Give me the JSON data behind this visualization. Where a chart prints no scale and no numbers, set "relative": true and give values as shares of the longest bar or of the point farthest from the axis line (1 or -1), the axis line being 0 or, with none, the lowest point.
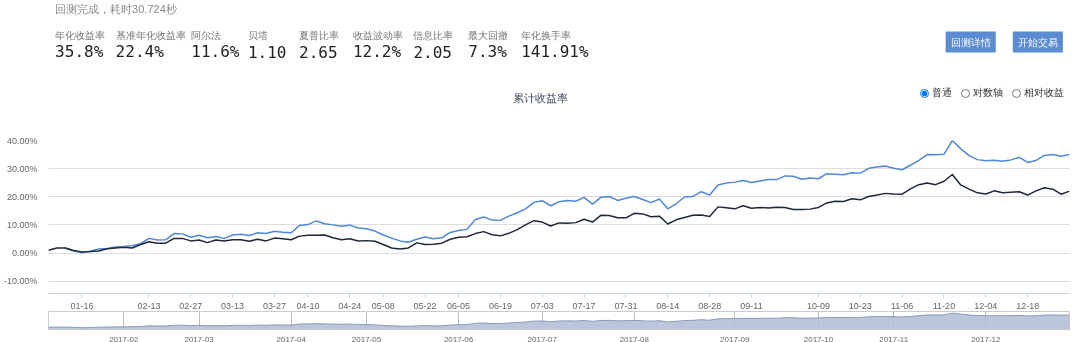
{
  "chart_data": [
    {
      "type": "other",
      "title": "回测完成，耗时30.724秒",
      "annotations": [
        "年化收益率",
        "基准年化收益率",
        "阿尔法",
        "贝塔",
        "夏普比率",
        "收益波动率",
        "信息比率",
        "最大回撤",
        "年化换手率",
        "35.8%",
        "22.4%",
        "11.6%",
        "1.10",
        "2.65",
        "12.2%",
        "2.05",
        "7.3%",
        "141.91%",
        "回测详情",
        "开始交易"
      ]
    },
    {
      "type": "line",
      "title": "累计收益率",
      "annotations": [
        "普通",
        "对数轴",
        "相对收益"
      ],
      "ylim": [
        -14.4,
        40
      ],
      "yticks": [
        {
          "value": -10,
          "label": "-10.00%"
        },
        {
          "value": 0,
          "label": "0.00%"
        },
        {
          "value": 10,
          "label": "10.00%"
        },
        {
          "value": 20,
          "label": "20.00%"
        },
        {
          "value": 30,
          "label": "30.00%"
        },
        {
          "value": 40,
          "label": "40.00%"
        }
      ],
      "grid": "y",
      "categories": [
        null,
        null,
        null,
        null,
        "01-16",
        null,
        null,
        null,
        null,
        null,
        null,
        null,
        "02-13",
        null,
        null,
        null,
        null,
        "02-27",
        null,
        null,
        null,
        null,
        "03-13",
        null,
        null,
        null,
        null,
        "03-27",
        null,
        null,
        null,
        "04-10",
        null,
        null,
        null,
        null,
        "04-24",
        null,
        null,
        null,
        "05-08",
        null,
        null,
        null,
        null,
        "05-22",
        null,
        null,
        null,
        "06-05",
        null,
        null,
        null,
        null,
        "06-19",
        null,
        null,
        null,
        null,
        "07-03",
        null,
        null,
        null,
        null,
        "07-17",
        null,
        null,
        null,
        null,
        "07-31",
        null,
        null,
        null,
        null,
        "08-14",
        null,
        null,
        null,
        null,
        "08-28",
        null,
        null,
        null,
        null,
        "09-11",
        null,
        null,
        null,
        null,
        null,
        null,
        null,
        "10-09",
        null,
        null,
        null,
        null,
        "10-23",
        null,
        null,
        null,
        null,
        "11-06",
        null,
        null,
        null,
        null,
        "11-20",
        null,
        null,
        null,
        null,
        "12-04",
        null,
        null,
        null,
        null,
        "12-18",
        null,
        null,
        null,
        null,
        null
      ],
      "series": [
        {
          "color": "#5087d8",
          "values": [
            null,
            null,
            1.8,
            0.7,
            0.1,
            0.6,
            1.4,
            1.6,
            2.1,
            2.3,
            2.6,
            3.3,
            5.2,
            4.6,
            4.7,
            6.9,
            6.8,
            5.6,
            6.3,
            5.4,
            5.9,
            5.2,
            6.4,
            6.7,
            6.2,
            7.2,
            6.9,
            7.7,
            7.4,
            7.2,
            9.8,
            10.1,
            11.4,
            10.4,
            10.0,
            9.5,
            9.9,
            8.9,
            8.6,
            7.8,
            6.4,
            5.3,
            4.3,
            3.8,
            4.9,
            5.7,
            5.1,
            5.4,
            7.3,
            8.0,
            8.4,
            11.9,
            12.8,
            11.7,
            11.6,
            13.1,
            14.3,
            15.7,
            18.0,
            18.6,
            16.8,
            18.2,
            18.7,
            18.4,
            19.8,
            17.4,
            19.8,
            20.1,
            18.7,
            19.5,
            20.1,
            19.0,
            17.9,
            19.2,
            15.7,
            17.5,
            19.9,
            20.1,
            21.8,
            20.6,
            24.2,
            24.9,
            25.2,
            25.8,
            25.1,
            25.6,
            26.1,
            26.1,
            27.4,
            27.3,
            26.2,
            26.7,
            26.4,
            28.2,
            28.0,
            27.8,
            28.5,
            28.4,
            30.1,
            30.6,
            30.9,
            30.1,
            29.6,
            31.2,
            32.9,
            35.0,
            34.9,
            35.1,
            40.0,
            37.1,
            34.6,
            33.2,
            32.8,
            33.0,
            32.6,
            33.1,
            34.0,
            32.2,
            32.9,
            34.7,
            35.0,
            34.4,
            35.0
          ]
        },
        {
          "color": "#1e2838",
          "values": [
            1.0,
            1.8,
            1.8,
            0.9,
            0.4,
            0.5,
            0.7,
            1.5,
            1.8,
            2.0,
            1.8,
            3.0,
            4.0,
            3.5,
            3.5,
            5.2,
            5.2,
            4.3,
            4.6,
            3.7,
            4.6,
            4.3,
            4.7,
            4.7,
            4.2,
            4.9,
            4.3,
            5.3,
            5.1,
            4.7,
            6.0,
            6.3,
            6.3,
            6.4,
            5.4,
            4.7,
            5.1,
            4.3,
            4.4,
            4.2,
            3.0,
            1.8,
            1.4,
            1.8,
            3.6,
            3.0,
            3.1,
            3.5,
            4.9,
            5.6,
            5.8,
            6.9,
            7.6,
            6.5,
            6.1,
            7.0,
            8.3,
            10.0,
            11.5,
            11.0,
            9.6,
            10.7,
            10.6,
            10.8,
            12.0,
            11.0,
            13.4,
            13.3,
            12.5,
            12.5,
            14.1,
            13.9,
            12.9,
            13.1,
            10.3,
            11.8,
            12.6,
            13.4,
            13.5,
            13.0,
            16.4,
            16.1,
            15.7,
            16.8,
            15.9,
            16.2,
            16.0,
            16.3,
            16.2,
            15.5,
            15.5,
            15.6,
            16.2,
            17.8,
            18.4,
            18.3,
            19.3,
            18.9,
            20.1,
            20.6,
            21.2,
            21.0,
            20.9,
            22.8,
            24.3,
            24.9,
            24.3,
            25.5,
            27.9,
            24.2,
            22.7,
            21.4,
            21.0,
            22.1,
            21.4,
            21.6,
            21.8,
            20.6,
            22.1,
            23.2,
            22.7,
            20.9,
            22.0
          ]
        }
      ]
    },
    {
      "type": "area",
      "relative": true,
      "tick_labels": "x",
      "grid": "x",
      "color": "#b4c0d6",
      "categories": [
        null,
        null,
        null,
        null,
        null,
        null,
        null,
        null,
        null,
        "2017-02",
        null,
        null,
        null,
        null,
        null,
        null,
        null,
        null,
        "2017-03",
        null,
        null,
        null,
        null,
        null,
        null,
        null,
        null,
        null,
        null,
        "2017-04",
        null,
        null,
        null,
        null,
        null,
        null,
        null,
        null,
        "2017-05",
        null,
        null,
        null,
        null,
        null,
        null,
        null,
        null,
        null,
        null,
        "2017-06",
        null,
        null,
        null,
        null,
        null,
        null,
        null,
        null,
        null,
        "2017-07",
        null,
        null,
        null,
        null,
        null,
        null,
        null,
        null,
        null,
        null,
        "2017-08",
        null,
        null,
        null,
        null,
        null,
        null,
        null,
        null,
        null,
        null,
        null,
        "2017-09",
        null,
        null,
        null,
        null,
        null,
        null,
        null,
        null,
        null,
        "2017-10",
        null,
        null,
        null,
        null,
        null,
        null,
        null,
        null,
        "2017-11",
        null,
        null,
        null,
        null,
        null,
        null,
        null,
        null,
        null,
        null,
        "2017-12",
        null,
        null,
        null,
        null,
        null,
        null,
        null,
        null,
        null,
        null
      ],
      "values": [
        0.13,
        0.15,
        0.15,
        0.13,
        0.11,
        0.12,
        0.14,
        0.15,
        0.16,
        0.16,
        0.17,
        0.18,
        0.23,
        0.21,
        0.22,
        0.26,
        0.26,
        0.24,
        0.25,
        0.23,
        0.24,
        0.23,
        0.25,
        0.26,
        0.25,
        0.27,
        0.26,
        0.28,
        0.28,
        0.27,
        0.33,
        0.34,
        0.36,
        0.34,
        0.33,
        0.32,
        0.33,
        0.31,
        0.3,
        0.28,
        0.25,
        0.23,
        0.21,
        0.2,
        0.22,
        0.24,
        0.22,
        0.23,
        0.27,
        0.29,
        0.3,
        0.38,
        0.4,
        0.37,
        0.37,
        0.4,
        0.43,
        0.46,
        0.51,
        0.52,
        0.48,
        0.52,
        0.53,
        0.52,
        0.55,
        0.5,
        0.55,
        0.56,
        0.53,
        0.54,
        0.56,
        0.53,
        0.51,
        0.54,
        0.46,
        0.5,
        0.55,
        0.56,
        0.6,
        0.57,
        0.65,
        0.66,
        0.67,
        0.68,
        0.67,
        0.68,
        0.69,
        0.69,
        0.72,
        0.72,
        0.69,
        0.7,
        0.7,
        0.74,
        0.73,
        0.73,
        0.74,
        0.74,
        0.78,
        0.79,
        0.8,
        0.78,
        0.77,
        0.8,
        0.84,
        0.89,
        0.89,
        0.89,
        1.0,
        0.94,
        0.88,
        0.85,
        0.84,
        0.84,
        0.84,
        0.85,
        0.87,
        0.83,
        0.84,
        0.88,
        0.89,
        0.88,
        0.89
      ]
    }
  ]
}
